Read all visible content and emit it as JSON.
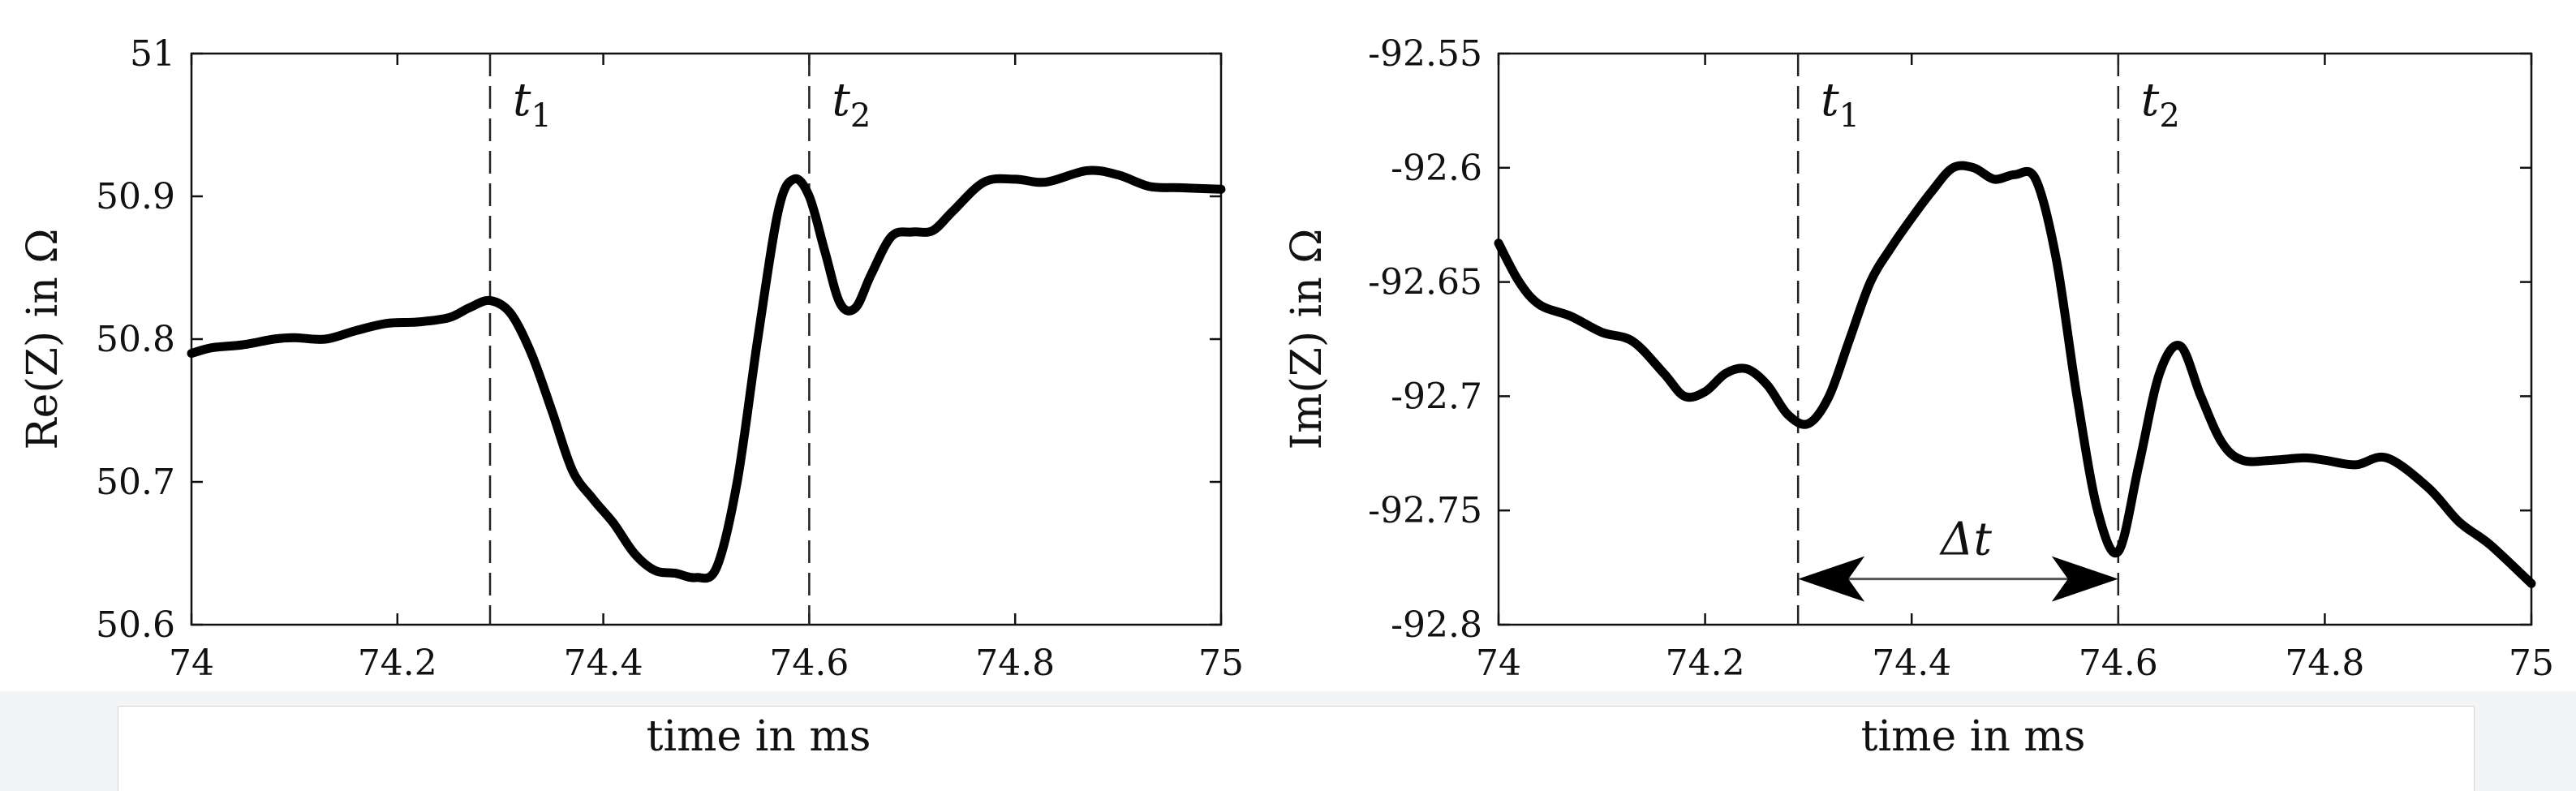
{
  "chart_data": [
    {
      "type": "line",
      "xlabel": "time in ms",
      "ylabel": "Re(Z) in Ω",
      "xlim": [
        74,
        75
      ],
      "ylim": [
        50.6,
        51
      ],
      "xticks": [
        "74",
        "74.2",
        "74.4",
        "74.6",
        "74.8",
        "75"
      ],
      "yticks": [
        "50.6",
        "50.7",
        "50.8",
        "50.9",
        "51"
      ],
      "grid": false,
      "markers": [
        {
          "x": 74.29,
          "label": "t",
          "subscript": "1"
        },
        {
          "x": 74.6,
          "label": "t",
          "subscript": "2"
        }
      ],
      "series": [
        {
          "x": [
            74.0,
            74.02,
            74.05,
            74.08,
            74.1,
            74.13,
            74.16,
            74.19,
            74.22,
            74.25,
            74.27,
            74.29,
            74.31,
            74.33,
            74.35,
            74.37,
            74.39,
            74.41,
            74.43,
            74.45,
            74.47,
            74.49,
            74.51,
            74.53,
            74.55,
            74.57,
            74.585,
            74.6,
            74.615,
            74.63,
            74.645,
            74.66,
            74.68,
            74.7,
            74.72,
            74.74,
            74.77,
            74.8,
            74.83,
            74.87,
            74.9,
            74.93,
            74.96,
            75.0
          ],
          "y": [
            50.79,
            50.794,
            50.796,
            50.8,
            50.801,
            50.8,
            50.806,
            50.811,
            50.812,
            50.815,
            50.822,
            50.827,
            50.818,
            50.79,
            50.75,
            50.708,
            50.688,
            50.671,
            50.65,
            50.638,
            50.636,
            50.633,
            50.64,
            50.7,
            50.8,
            50.89,
            50.912,
            50.9,
            50.862,
            50.825,
            50.822,
            50.845,
            50.872,
            50.875,
            50.876,
            50.89,
            50.91,
            50.912,
            50.91,
            50.918,
            50.915,
            50.907,
            50.906,
            50.905
          ]
        }
      ]
    },
    {
      "type": "line",
      "xlabel": "time in ms",
      "ylabel": "Im(Z) in Ω",
      "xlim": [
        74,
        75
      ],
      "ylim": [
        -92.8,
        -92.55
      ],
      "xticks": [
        "74",
        "74.2",
        "74.4",
        "74.6",
        "74.8",
        "75"
      ],
      "yticks": [
        "-92.8",
        "-92.75",
        "-92.7",
        "-92.65",
        "-92.6",
        "-92.55"
      ],
      "grid": false,
      "markers": [
        {
          "x": 74.29,
          "label": "t",
          "subscript": "1"
        },
        {
          "x": 74.6,
          "label": "t",
          "subscript": "2"
        }
      ],
      "annotation": {
        "text": "Δt",
        "from": 74.29,
        "to": 74.6,
        "y": -92.78
      },
      "series": [
        {
          "x": [
            74.0,
            74.02,
            74.04,
            74.07,
            74.1,
            74.13,
            74.16,
            74.18,
            74.2,
            74.22,
            74.24,
            74.26,
            74.28,
            74.3,
            74.32,
            74.34,
            74.36,
            74.38,
            74.4,
            74.42,
            74.44,
            74.46,
            74.48,
            74.5,
            74.52,
            74.54,
            74.56,
            74.58,
            74.6,
            74.62,
            74.64,
            74.66,
            74.68,
            74.7,
            74.72,
            74.75,
            74.78,
            74.8,
            74.83,
            74.86,
            74.9,
            74.93,
            74.96,
            75.0
          ],
          "y": [
            -92.633,
            -92.65,
            -92.66,
            -92.665,
            -92.672,
            -92.676,
            -92.69,
            -92.7,
            -92.698,
            -92.69,
            -92.688,
            -92.695,
            -92.708,
            -92.712,
            -92.7,
            -92.675,
            -92.65,
            -92.635,
            -92.622,
            -92.61,
            -92.6,
            -92.6,
            -92.605,
            -92.603,
            -92.605,
            -92.64,
            -92.7,
            -92.75,
            -92.768,
            -92.73,
            -92.69,
            -92.678,
            -92.7,
            -92.72,
            -92.728,
            -92.728,
            -92.727,
            -92.728,
            -92.73,
            -92.727,
            -92.74,
            -92.755,
            -92.765,
            -92.782
          ]
        }
      ]
    }
  ]
}
